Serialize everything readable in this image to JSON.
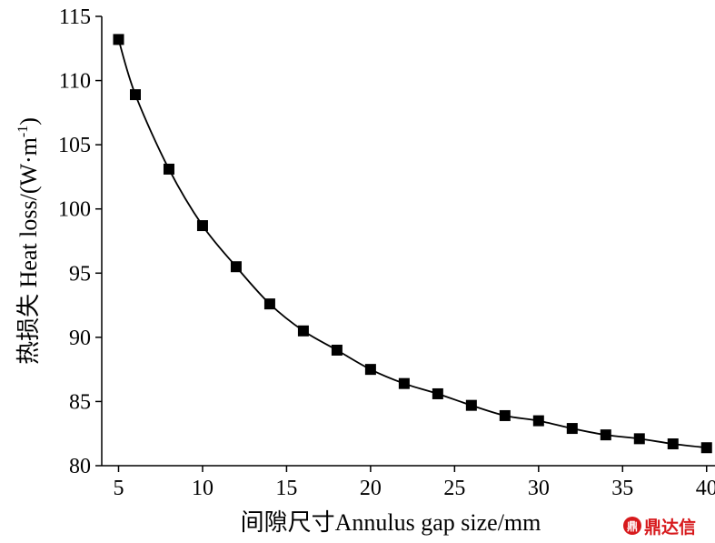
{
  "chart_data": {
    "type": "line",
    "title": "",
    "xlabel": "间隙尺寸Annulus gap size/mm",
    "ylabel_main": "热损失 Heat loss/(W·m",
    "ylabel_sup": "-1",
    "ylabel_close": ")",
    "xlim": [
      4,
      40.5
    ],
    "ylim": [
      80,
      115
    ],
    "xticks": [
      5,
      10,
      15,
      20,
      25,
      30,
      35,
      40
    ],
    "yticks": [
      80,
      85,
      90,
      95,
      100,
      105,
      110,
      115
    ],
    "grid": false,
    "marker": "square",
    "color": "#000000",
    "series": [
      {
        "x": [
          5,
          6,
          8,
          10,
          12,
          14,
          16,
          18,
          20,
          22,
          24,
          26,
          28,
          30,
          32,
          34,
          36,
          38,
          40
        ],
        "y": [
          113.2,
          108.9,
          103.1,
          98.7,
          95.5,
          92.6,
          90.5,
          89.0,
          87.5,
          86.4,
          85.6,
          84.7,
          83.9,
          83.5,
          82.9,
          82.4,
          82.1,
          81.7,
          81.4
        ]
      }
    ]
  },
  "watermark": {
    "logo_glyph": "鼎",
    "text": "鼎达信"
  }
}
